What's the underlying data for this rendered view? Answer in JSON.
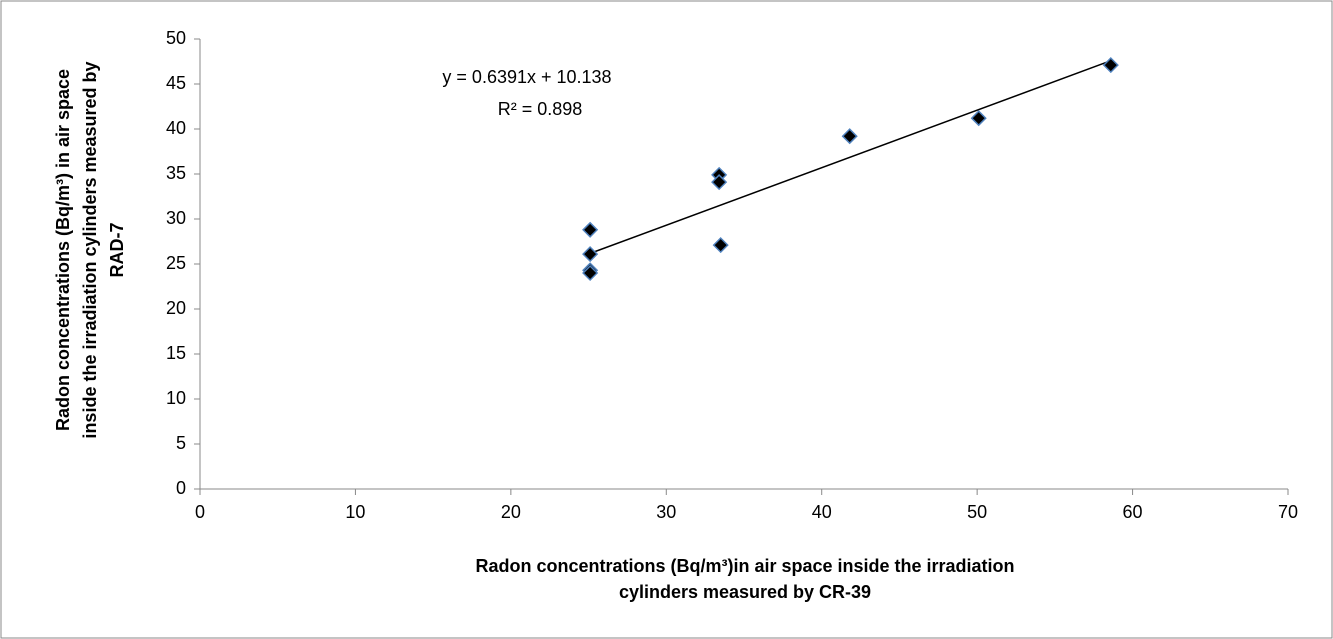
{
  "chart_data": {
    "type": "scatter",
    "x_label_lines": [
      "Radon concentrations (Bq/m³)in air space inside the irradiation",
      "cylinders  measured by CR-39"
    ],
    "y_label_lines": [
      "Radon concentrations (Bq/m³) in air space",
      "inside the irradiation cylinders  measured by",
      "RAD-7"
    ],
    "series": [
      {
        "color": "#000000",
        "edge_color": "#4f81bd",
        "x": [
          25.1,
          25.1,
          25.1,
          25.1,
          33.4,
          33.4,
          33.5,
          41.8,
          50.1,
          58.6
        ],
        "values": [
          28.8,
          26.1,
          24.3,
          24.0,
          34.9,
          34.1,
          27.1,
          39.2,
          41.2,
          47.1
        ]
      }
    ],
    "trendline": {
      "slope": 0.6391,
      "intercept": 10.138,
      "equation": "y = 0.6391x + 10.138",
      "r2": "R² = 0.898"
    },
    "xlim": [
      0,
      70
    ],
    "xticks": [
      0,
      10,
      20,
      30,
      40,
      50,
      60,
      70
    ],
    "ylim": [
      0,
      50
    ],
    "yticks": [
      0,
      5,
      10,
      15,
      20,
      25,
      30,
      35,
      40,
      45,
      50
    ],
    "grid": false
  }
}
